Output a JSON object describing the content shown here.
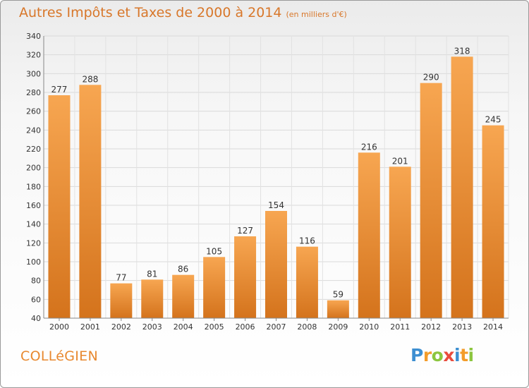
{
  "chart_data": {
    "type": "bar",
    "title": "Autres Impôts et Taxes de 2000 à 2014",
    "subtitle": "(en milliers d'€)",
    "categories": [
      "2000",
      "2001",
      "2002",
      "2003",
      "2004",
      "2005",
      "2006",
      "2007",
      "2008",
      "2009",
      "2010",
      "2011",
      "2012",
      "2013",
      "2014"
    ],
    "values": [
      277,
      288,
      77,
      81,
      86,
      105,
      127,
      154,
      116,
      59,
      216,
      201,
      290,
      318,
      245
    ],
    "ylim": [
      40,
      340
    ],
    "yticks": [
      40,
      60,
      80,
      100,
      120,
      140,
      160,
      180,
      200,
      220,
      240,
      260,
      280,
      300,
      320,
      340
    ],
    "grid": true,
    "bar_color": "#f0953e"
  },
  "footer": {
    "commune": "COLLéGIEN",
    "brand_letters": [
      {
        "ch": "P",
        "color": "#3d8fd1"
      },
      {
        "ch": "r",
        "color": "#f39c2a"
      },
      {
        "ch": "o",
        "color": "#8cc63f"
      },
      {
        "ch": "x",
        "color": "#e94b3c"
      },
      {
        "ch": "i",
        "color": "#3d8fd1"
      },
      {
        "ch": "t",
        "color": "#f39c2a"
      },
      {
        "ch": "i",
        "color": "#8cc63f"
      }
    ]
  }
}
